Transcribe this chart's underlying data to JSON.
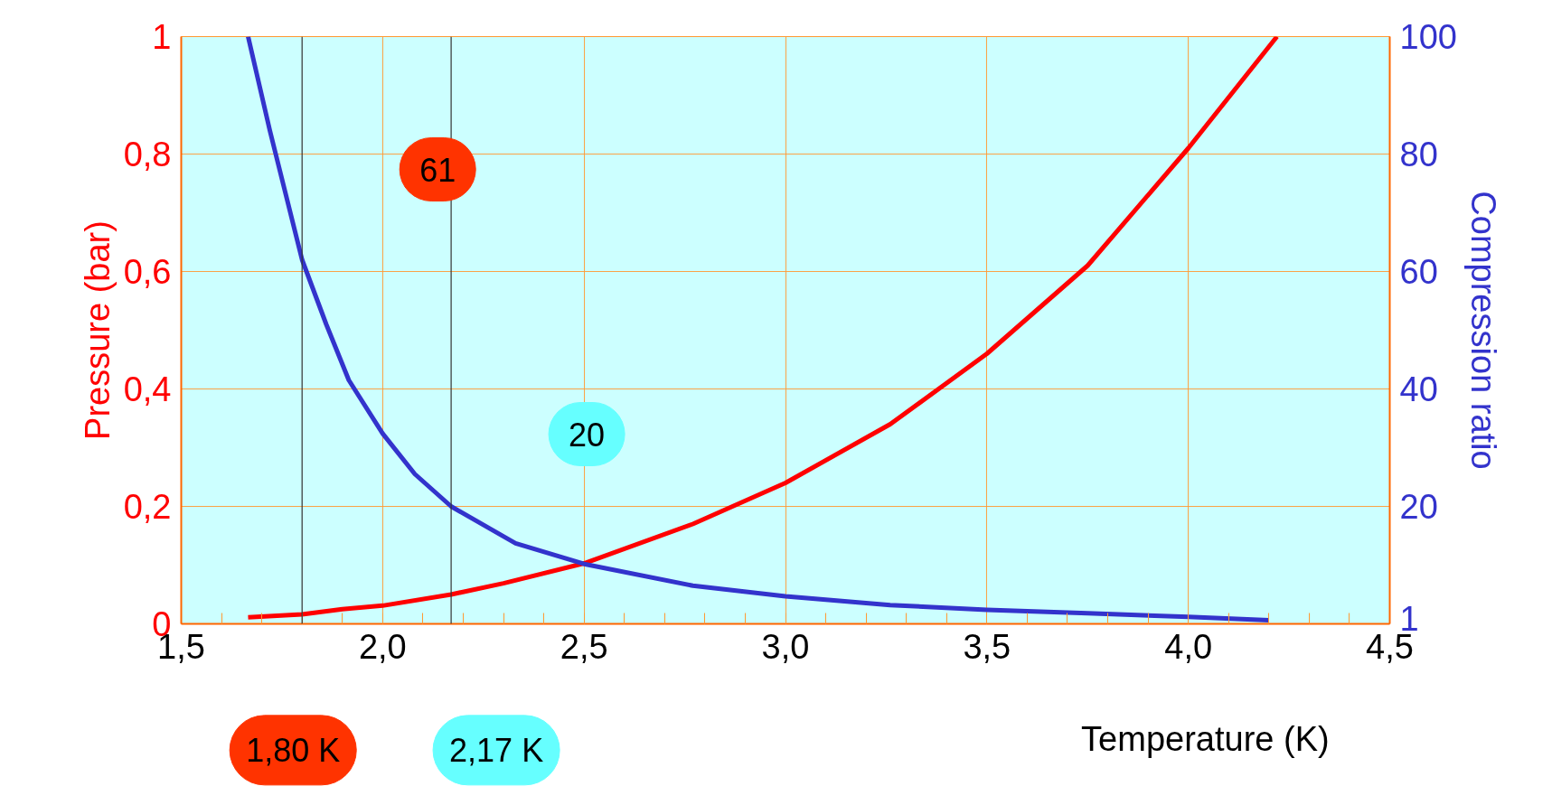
{
  "chart_data": {
    "type": "line",
    "xlabel": "Temperature (K)",
    "ylabel": "Pressure (bar)",
    "y2label": "Compression ratio",
    "series": [
      {
        "color": "#ff0000",
        "x": [
          1.666,
          1.8,
          1.9,
          2.0,
          2.17,
          2.3,
          2.5,
          2.77,
          3.0,
          3.26,
          3.5,
          3.75,
          4.0,
          4.22
        ],
        "values": [
          0.011,
          0.016,
          0.025,
          0.031,
          0.05,
          0.069,
          0.103,
          0.17,
          0.24,
          0.34,
          0.46,
          0.61,
          0.81,
          1.0
        ]
      },
      {
        "color": "#3333cc",
        "axis": "y2",
        "x": [
          1.666,
          1.72,
          1.8,
          1.86,
          1.916,
          2.0,
          2.08,
          2.17,
          2.33,
          2.5,
          2.77,
          3.0,
          3.26,
          3.5,
          3.75,
          4.0,
          4.2
        ],
        "values": [
          100,
          84,
          62,
          51,
          41.5,
          32.4,
          25.5,
          20,
          13.7,
          10.2,
          6.5,
          4.7,
          3.2,
          2.4,
          1.8,
          1.2,
          0.6
        ]
      }
    ],
    "xlim": [
      1.5,
      4.5
    ],
    "ylim": [
      0,
      1
    ],
    "y2lim": [
      0,
      100
    ],
    "xticks": [
      {
        "value": 1.5,
        "label": "1,5"
      },
      {
        "value": 2.0,
        "label": "2,0"
      },
      {
        "value": 2.5,
        "label": "2,5"
      },
      {
        "value": 3.0,
        "label": "3,0"
      },
      {
        "value": 3.5,
        "label": "3,5"
      },
      {
        "value": 4.0,
        "label": "4,0"
      },
      {
        "value": 4.5,
        "label": "4,5"
      }
    ],
    "yticks": [
      0,
      {
        "value": 0.2,
        "label": "0,2"
      },
      {
        "value": 0.4,
        "label": "0,4"
      },
      {
        "value": 0.6,
        "label": "0,6"
      },
      {
        "value": 0.8,
        "label": "0,8"
      },
      1
    ],
    "y2ticks": [
      1,
      20,
      40,
      60,
      80,
      100
    ],
    "grid": true,
    "line_style": "solid",
    "ref_lines": [
      {
        "axis": "x",
        "value": 1.8,
        "label": null
      },
      {
        "axis": "x",
        "value": 2.17,
        "label": null
      }
    ],
    "annotations": [
      "61",
      "20",
      "1,80 K",
      "2,17 K"
    ]
  }
}
